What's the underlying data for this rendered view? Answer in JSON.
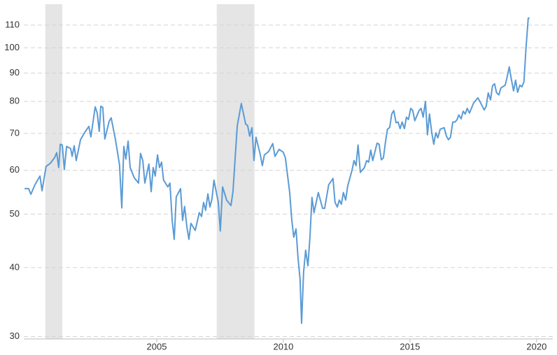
{
  "chart_data": {
    "type": "line",
    "log_y": true,
    "grid": true,
    "xlim": [
      1999.75,
      2020.64
    ],
    "ylim": [
      29.7,
      120
    ],
    "xticks": [
      2005,
      2010,
      2015,
      2020
    ],
    "yticks": [
      30,
      40,
      50,
      60,
      70,
      80,
      90,
      100,
      110
    ],
    "shaded_ranges": [
      [
        2000.6,
        2001.27
      ],
      [
        2007.37,
        2008.86
      ]
    ],
    "series": [
      {
        "color": "#5b9bd5",
        "x": [
          1999.78,
          1999.94,
          2000.03,
          2000.19,
          2000.39,
          2000.47,
          2000.63,
          2000.8,
          2000.97,
          2001.05,
          2001.13,
          2001.19,
          2001.27,
          2001.35,
          2001.44,
          2001.6,
          2001.66,
          2001.74,
          2001.82,
          2001.99,
          2002.15,
          2002.32,
          2002.4,
          2002.57,
          2002.65,
          2002.73,
          2002.79,
          2002.87,
          2002.95,
          2003.12,
          2003.2,
          2003.37,
          2003.53,
          2003.62,
          2003.7,
          2003.78,
          2003.87,
          2003.95,
          2004.11,
          2004.28,
          2004.36,
          2004.45,
          2004.53,
          2004.69,
          2004.78,
          2004.86,
          2004.94,
          2005.03,
          2005.11,
          2005.19,
          2005.27,
          2005.44,
          2005.52,
          2005.61,
          2005.69,
          2005.77,
          2005.94,
          2006.02,
          2006.1,
          2006.19,
          2006.27,
          2006.35,
          2006.52,
          2006.68,
          2006.77,
          2006.85,
          2006.93,
          2007.02,
          2007.1,
          2007.18,
          2007.26,
          2007.43,
          2007.51,
          2007.6,
          2007.76,
          2007.93,
          2008.01,
          2008.09,
          2008.18,
          2008.34,
          2008.51,
          2008.59,
          2008.67,
          2008.76,
          2008.84,
          2008.92,
          2009.09,
          2009.17,
          2009.25,
          2009.42,
          2009.58,
          2009.67,
          2009.83,
          2010.0,
          2010.08,
          2010.25,
          2010.33,
          2010.41,
          2010.5,
          2010.58,
          2010.66,
          2010.72,
          2010.8,
          2010.88,
          2010.97,
          2011.05,
          2011.13,
          2011.21,
          2011.38,
          2011.55,
          2011.63,
          2011.79,
          2011.96,
          2012.04,
          2012.13,
          2012.21,
          2012.29,
          2012.37,
          2012.46,
          2012.54,
          2012.71,
          2012.79,
          2012.87,
          2012.95,
          2013.04,
          2013.2,
          2013.29,
          2013.37,
          2013.45,
          2013.53,
          2013.7,
          2013.78,
          2013.87,
          2013.95,
          2014.03,
          2014.11,
          2014.2,
          2014.28,
          2014.36,
          2014.45,
          2014.53,
          2014.61,
          2014.69,
          2014.78,
          2014.86,
          2014.94,
          2015.03,
          2015.11,
          2015.19,
          2015.36,
          2015.44,
          2015.52,
          2015.61,
          2015.69,
          2015.77,
          2015.86,
          2015.94,
          2016.02,
          2016.1,
          2016.19,
          2016.35,
          2016.44,
          2016.52,
          2016.6,
          2016.69,
          2016.77,
          2016.85,
          2016.93,
          2017.02,
          2017.1,
          2017.18,
          2017.26,
          2017.35,
          2017.51,
          2017.68,
          2017.76,
          2017.93,
          2018.01,
          2018.09,
          2018.18,
          2018.26,
          2018.34,
          2018.42,
          2018.51,
          2018.59,
          2018.76,
          2018.84,
          2018.92,
          2019.0,
          2019.09,
          2019.17,
          2019.25,
          2019.34,
          2019.42,
          2019.5,
          2019.58,
          2019.67,
          2019.72
        ],
        "values": [
          55.6,
          55.6,
          54.3,
          56.5,
          58.6,
          55.1,
          61.0,
          61.8,
          63.3,
          64.6,
          60.7,
          66.9,
          66.7,
          60.2,
          66.3,
          65.7,
          63.6,
          66.5,
          62.5,
          68.2,
          70.2,
          72.1,
          69.0,
          78.2,
          76.2,
          70.6,
          78.4,
          78.0,
          68.4,
          73.6,
          74.7,
          68.2,
          61.4,
          51.3,
          66.3,
          62.9,
          67.8,
          60.7,
          58.2,
          56.9,
          64.4,
          62.5,
          56.9,
          61.6,
          54.9,
          60.7,
          58.6,
          64.0,
          60.7,
          62.1,
          57.6,
          56.0,
          56.9,
          48.7,
          45.0,
          53.7,
          55.6,
          48.7,
          51.6,
          47.4,
          45.0,
          48.1,
          46.7,
          50.3,
          49.5,
          52.5,
          50.8,
          54.4,
          51.5,
          53.2,
          57.6,
          52.5,
          46.6,
          56.0,
          53.0,
          51.8,
          54.9,
          62.5,
          72.3,
          79.3,
          72.8,
          72.3,
          69.2,
          71.7,
          62.5,
          68.9,
          64.0,
          61.2,
          64.0,
          64.9,
          67.1,
          63.6,
          65.5,
          64.7,
          63.2,
          54.7,
          48.9,
          45.4,
          47.0,
          41.6,
          38.1,
          31.7,
          39.3,
          43.0,
          40.3,
          45.4,
          53.6,
          50.3,
          54.7,
          51.2,
          51.2,
          56.5,
          58.0,
          52.5,
          51.5,
          53.0,
          52.1,
          54.7,
          53.0,
          56.2,
          60.0,
          62.5,
          61.2,
          66.7,
          59.5,
          60.7,
          62.5,
          62.1,
          65.3,
          62.5,
          67.2,
          66.9,
          62.7,
          63.2,
          67.4,
          71.2,
          71.8,
          75.9,
          77.0,
          73.2,
          73.4,
          71.4,
          73.4,
          71.4,
          74.9,
          74.2,
          77.7,
          77.0,
          73.8,
          77.0,
          77.7,
          74.9,
          80.0,
          69.6,
          75.9,
          70.2,
          66.9,
          70.2,
          68.7,
          71.2,
          71.7,
          69.2,
          68.2,
          68.9,
          73.4,
          73.4,
          74.0,
          75.6,
          74.4,
          76.8,
          75.9,
          77.7,
          76.2,
          79.4,
          81.2,
          80.0,
          77.2,
          78.4,
          82.9,
          80.5,
          85.4,
          86.1,
          82.9,
          82.2,
          84.6,
          85.6,
          88.7,
          92.4,
          87.9,
          83.6,
          87.4,
          83.1,
          85.6,
          85.0,
          86.8,
          99.7,
          113.2,
          113.2
        ]
      }
    ]
  }
}
